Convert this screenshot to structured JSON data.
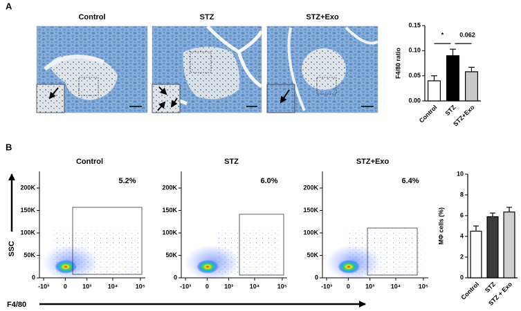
{
  "panel_labels": [
    "A",
    "B"
  ],
  "micrographs": {
    "titles": [
      "Control",
      "STZ",
      "STZ+Exo"
    ]
  },
  "chart_data": [
    {
      "type": "bar",
      "y_label": "F4/80 ratio",
      "categories": [
        "Control",
        "STZ",
        "STZ+Exo"
      ],
      "values": [
        0.04,
        0.09,
        0.058
      ],
      "errors": [
        0.01,
        0.013,
        0.009
      ],
      "colors": [
        "#ffffff",
        "#000000",
        "#c8c8c8"
      ],
      "ylim": [
        0,
        0.15
      ],
      "yticks": [
        {
          "value": 0,
          "label": "0.00"
        },
        {
          "value": 0.05,
          "label": "0.05"
        },
        {
          "value": 0.1,
          "label": "0.10"
        },
        {
          "value": 0.15,
          "label": "0.15"
        }
      ],
      "annotations": [
        "*",
        "0.062"
      ]
    },
    {
      "type": "bar",
      "y_label": "MΦ cells (%)",
      "categories": [
        "Control",
        "STZ",
        "STZ + Exo"
      ],
      "values": [
        4.5,
        5.9,
        6.35
      ],
      "errors": [
        0.5,
        0.35,
        0.45
      ],
      "colors": [
        "#ffffff",
        "#3a3a3a",
        "#cfcfcf"
      ],
      "ylim": [
        0,
        10
      ],
      "yticks": [
        0,
        2,
        4,
        6,
        8,
        10
      ]
    }
  ],
  "flow": {
    "titles": [
      "Control",
      "STZ",
      "STZ+Exo"
    ],
    "gate_labels": [
      "5.2%",
      "6.0%",
      "6.4%"
    ],
    "x_label": "F4/80",
    "y_label": "SSC",
    "xscale": "biexponential",
    "xlim": [
      -1500,
      150000
    ],
    "ylim": [
      0,
      237000
    ],
    "xticks": [
      {
        "value": -1000,
        "label": "-10³"
      },
      0,
      {
        "value": 1000,
        "label": "10³"
      },
      {
        "value": 10000,
        "label": "10⁴"
      },
      {
        "value": 100000,
        "label": "10⁵"
      }
    ],
    "yticks": [
      0,
      {
        "value": 50000,
        "label": "50K"
      },
      {
        "value": 100000,
        "label": "100K"
      },
      {
        "value": 150000,
        "label": "150K"
      },
      {
        "value": 200000,
        "label": "200K"
      }
    ]
  }
}
